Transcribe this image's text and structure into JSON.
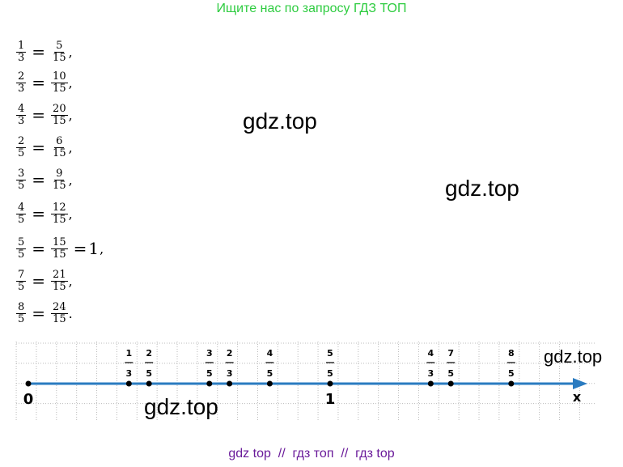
{
  "header": {
    "title": "Ищите нас по запросу ГДЗ ТОП"
  },
  "equals_sign": "=",
  "equations": [
    {
      "left": [
        "1",
        "3"
      ],
      "right": [
        "5",
        "15"
      ],
      "end": ","
    },
    {
      "left": [
        "2",
        "3"
      ],
      "right": [
        "10",
        "15"
      ],
      "end": ","
    },
    {
      "left": [
        "4",
        "3"
      ],
      "right": [
        "20",
        "15"
      ],
      "end": ","
    },
    {
      "left": [
        "2",
        "5"
      ],
      "right": [
        "6",
        "15"
      ],
      "end": ","
    },
    {
      "left": [
        "3",
        "5"
      ],
      "right": [
        "9",
        "15"
      ],
      "end": ","
    },
    {
      "left": [
        "4",
        "5"
      ],
      "right": [
        "12",
        "15"
      ],
      "end": ","
    },
    {
      "left": [
        "5",
        "5"
      ],
      "right": [
        "15",
        "15"
      ],
      "result": "1",
      "end": ","
    },
    {
      "left": [
        "7",
        "5"
      ],
      "right": [
        "21",
        "15"
      ],
      "end": ","
    },
    {
      "left": [
        "8",
        "5"
      ],
      "right": [
        "24",
        "15"
      ],
      "end": "."
    }
  ],
  "number_line": {
    "origin_label": "0",
    "unit_label": "1",
    "axis_label": "x",
    "points": [
      {
        "num": "1",
        "den": "3"
      },
      {
        "num": "2",
        "den": "5"
      },
      {
        "num": "3",
        "den": "5"
      },
      {
        "num": "2",
        "den": "3"
      },
      {
        "num": "4",
        "den": "5"
      },
      {
        "num": "5",
        "den": "5"
      },
      {
        "num": "4",
        "den": "3"
      },
      {
        "num": "7",
        "den": "5"
      },
      {
        "num": "8",
        "den": "5"
      }
    ]
  },
  "watermarks": [
    "gdz.top",
    "gdz.top",
    "gdz.top",
    "gdz.top"
  ],
  "footer": {
    "text": "gdz top  //  гдз топ  //  гдз top"
  }
}
